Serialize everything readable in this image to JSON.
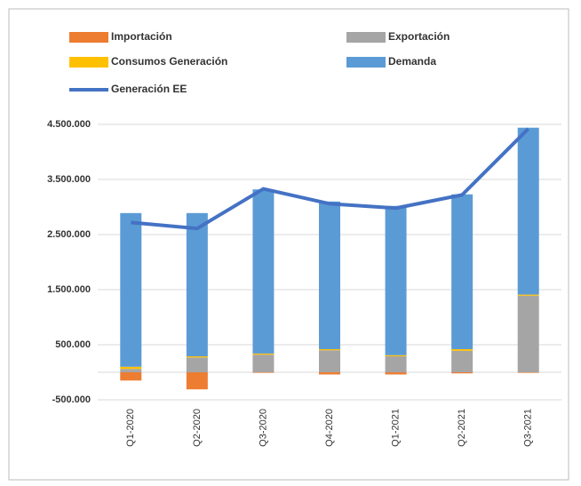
{
  "chart_data": {
    "type": "bar",
    "stacked": true,
    "categories": [
      "Q1-2020",
      "Q2-2020",
      "Q3-2020",
      "Q4-2020",
      "Q1-2021",
      "Q2-2021",
      "Q3-2021"
    ],
    "series": [
      {
        "name": "Importación",
        "color": "#ed7d31",
        "values": [
          -150000,
          -310000,
          -10000,
          -40000,
          -40000,
          -20000,
          -10000
        ]
      },
      {
        "name": "Exportación",
        "color": "#a5a5a5",
        "values": [
          60000,
          270000,
          320000,
          400000,
          290000,
          390000,
          1390000
        ]
      },
      {
        "name": "Consumos Generación",
        "color": "#ffc000",
        "values": [
          40000,
          20000,
          20000,
          20000,
          20000,
          30000,
          20000
        ]
      },
      {
        "name": "Demanda",
        "color": "#5b9bd5",
        "values": [
          2790000,
          2600000,
          2980000,
          2680000,
          2710000,
          2810000,
          3030000
        ]
      },
      {
        "name": "Generación EE",
        "color": "#4472c4",
        "type": "line",
        "values": [
          2720000,
          2610000,
          3330000,
          3060000,
          2980000,
          3220000,
          4420000
        ]
      }
    ],
    "ylim": [
      -500000,
      4500000
    ],
    "yticks": [
      {
        "value": -500000,
        "label": "-500.000"
      },
      {
        "value": 500000,
        "label": "500.000"
      },
      {
        "value": 1500000,
        "label": "1.500.000"
      },
      {
        "value": 2500000,
        "label": "2.500.000"
      },
      {
        "value": 3500000,
        "label": "3.500.000"
      },
      {
        "value": 4500000,
        "label": "4.500.000"
      }
    ],
    "grid": true
  }
}
